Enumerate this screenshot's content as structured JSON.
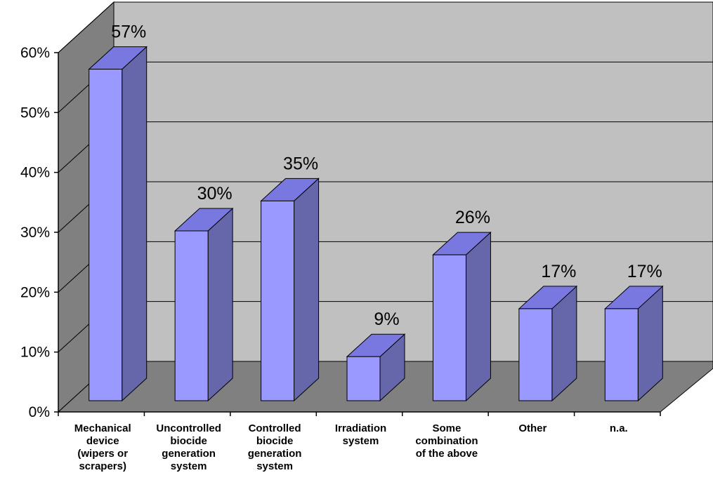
{
  "chart_data": {
    "type": "bar",
    "categories": [
      "Mechanical device (wipers or scrapers)",
      "Uncontrolled biocide generation system",
      "Controlled biocide generation system",
      "Irradiation system",
      "Some combination of the above",
      "Other",
      "n.a."
    ],
    "category_lines": [
      [
        "Mechanical",
        "device",
        "(wipers or",
        "scrapers)"
      ],
      [
        "Uncontrolled",
        "biocide",
        "generation",
        "system"
      ],
      [
        "Controlled",
        "biocide",
        "generation",
        "system"
      ],
      [
        "Irradiation",
        "system"
      ],
      [
        "Some",
        "combination",
        "of the above"
      ],
      [
        "Other"
      ],
      [
        "n.a."
      ]
    ],
    "values": [
      57,
      30,
      35,
      9,
      26,
      17,
      17
    ],
    "data_labels": [
      "57%",
      "30%",
      "35%",
      "9%",
      "26%",
      "17%",
      "17%"
    ],
    "ylim": [
      0,
      60
    ],
    "yticks": [
      0,
      10,
      20,
      30,
      40,
      50,
      60
    ],
    "ytick_labels": [
      "0%",
      "10%",
      "20%",
      "30%",
      "40%",
      "50%",
      "60%"
    ],
    "grid": true,
    "style": "3d-column",
    "colors": {
      "bar_front": "#9999ff",
      "bar_top": "#7878e0",
      "bar_side": "#6666aa",
      "back_wall": "#c0c0c0",
      "side_wall": "#808080",
      "floor": "#808080"
    }
  }
}
